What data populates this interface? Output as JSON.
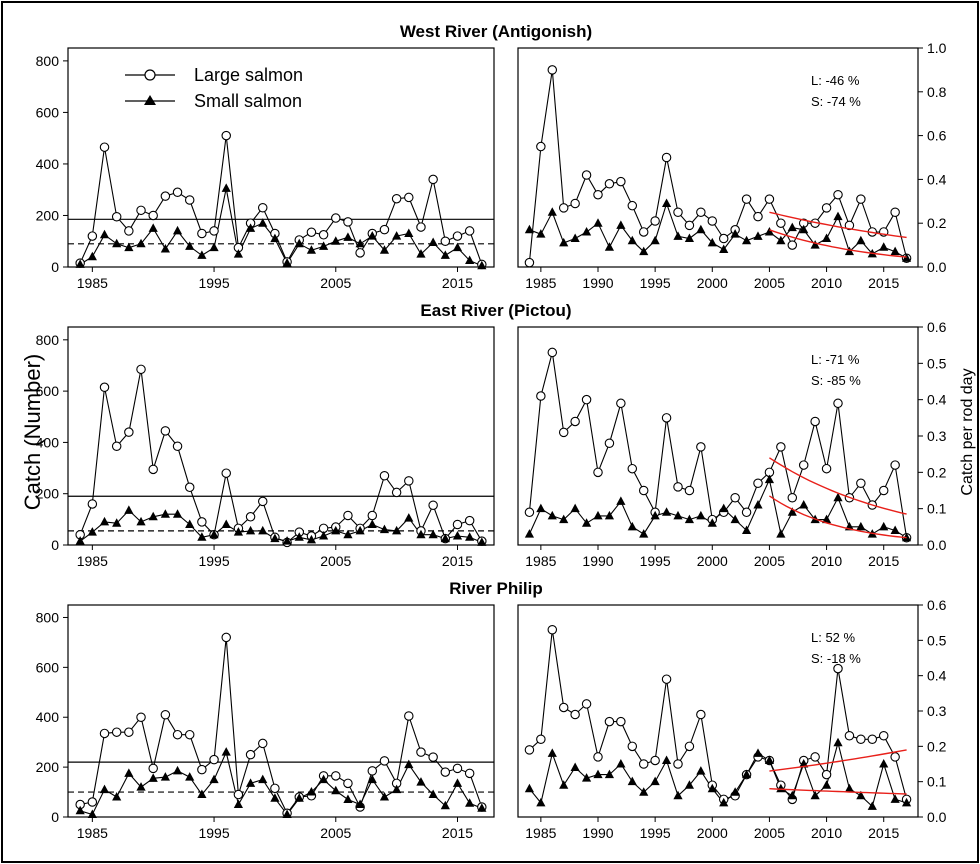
{
  "figure": {
    "ylabel_left": "Catch (Number)",
    "ylabel_right": "Catch per rod day",
    "legend": [
      {
        "label": "Large salmon",
        "marker": "open-circle"
      },
      {
        "label": "Small salmon",
        "marker": "filled-triangle"
      }
    ],
    "colors": {
      "trend": "#e8201a",
      "line": "#000000"
    }
  },
  "chart_data": [
    {
      "type": "line",
      "river": "West River (Antigonish)",
      "measure": "Catch (Number)",
      "xlim": [
        1983,
        2018
      ],
      "ylim": [
        0,
        850
      ],
      "xticks": [
        1985,
        1995,
        2005,
        2015
      ],
      "yticks": [
        0,
        200,
        400,
        600,
        800
      ],
      "x": [
        1984,
        1985,
        1986,
        1987,
        1988,
        1989,
        1990,
        1991,
        1992,
        1993,
        1994,
        1995,
        1996,
        1997,
        1998,
        1999,
        2000,
        2001,
        2002,
        2003,
        2004,
        2005,
        2006,
        2007,
        2008,
        2009,
        2010,
        2011,
        2012,
        2013,
        2014,
        2015,
        2016,
        2017
      ],
      "series": [
        {
          "name": "Large salmon",
          "marker": "open-circle",
          "values": [
            15,
            120,
            465,
            195,
            140,
            220,
            200,
            275,
            290,
            260,
            130,
            140,
            510,
            75,
            170,
            230,
            130,
            20,
            105,
            135,
            125,
            190,
            175,
            55,
            130,
            145,
            265,
            270,
            155,
            340,
            100,
            120,
            140,
            10
          ]
        },
        {
          "name": "Small salmon",
          "marker": "filled-triangle",
          "values": [
            10,
            40,
            125,
            90,
            75,
            90,
            150,
            70,
            140,
            80,
            45,
            75,
            305,
            50,
            150,
            170,
            110,
            15,
            90,
            65,
            80,
            100,
            115,
            90,
            120,
            65,
            120,
            130,
            50,
            95,
            45,
            75,
            25,
            5
          ]
        }
      ],
      "reference_lines": [
        {
          "style": "solid",
          "y": 185
        },
        {
          "style": "dashed",
          "y": 90
        }
      ]
    },
    {
      "type": "line",
      "river": "West River (Antigonish)",
      "measure": "Catch per rod day",
      "xlim": [
        1983,
        2018
      ],
      "ylim": [
        0,
        1.0
      ],
      "xticks": [
        1985,
        1990,
        1995,
        2000,
        2005,
        2010,
        2015
      ],
      "yticks": [
        0.0,
        0.2,
        0.4,
        0.6,
        0.8,
        1.0
      ],
      "annotations": [
        "L: -46 %",
        "S: -74 %"
      ],
      "x": [
        1984,
        1985,
        1986,
        1987,
        1988,
        1989,
        1990,
        1991,
        1992,
        1993,
        1994,
        1995,
        1996,
        1997,
        1998,
        1999,
        2000,
        2001,
        2002,
        2003,
        2004,
        2005,
        2006,
        2007,
        2008,
        2009,
        2010,
        2011,
        2012,
        2013,
        2014,
        2015,
        2016,
        2017
      ],
      "series": [
        {
          "name": "Large salmon",
          "marker": "open-circle",
          "values": [
            0.02,
            0.55,
            0.9,
            0.27,
            0.29,
            0.42,
            0.33,
            0.38,
            0.39,
            0.28,
            0.16,
            0.21,
            0.5,
            0.25,
            0.19,
            0.25,
            0.21,
            0.13,
            0.17,
            0.31,
            0.23,
            0.31,
            0.2,
            0.1,
            0.2,
            0.2,
            0.27,
            0.33,
            0.19,
            0.31,
            0.16,
            0.16,
            0.25,
            0.04
          ]
        },
        {
          "name": "Small salmon",
          "marker": "filled-triangle",
          "values": [
            0.17,
            0.15,
            0.25,
            0.11,
            0.13,
            0.16,
            0.2,
            0.09,
            0.19,
            0.12,
            0.07,
            0.12,
            0.29,
            0.14,
            0.13,
            0.17,
            0.11,
            0.08,
            0.15,
            0.12,
            0.14,
            0.16,
            0.12,
            0.18,
            0.17,
            0.1,
            0.13,
            0.23,
            0.07,
            0.12,
            0.06,
            0.09,
            0.07,
            0.04
          ]
        }
      ],
      "trend_lines": [
        {
          "series": "Large salmon",
          "x": [
            2005,
            2017
          ],
          "y": [
            0.25,
            0.135
          ]
        },
        {
          "series": "Small salmon",
          "x": [
            2005,
            2017
          ],
          "y": [
            0.17,
            0.045
          ]
        }
      ]
    },
    {
      "type": "line",
      "river": "East River (Pictou)",
      "measure": "Catch (Number)",
      "xlim": [
        1983,
        2018
      ],
      "ylim": [
        0,
        850
      ],
      "xticks": [
        1985,
        1995,
        2005,
        2015
      ],
      "yticks": [
        0,
        200,
        400,
        600,
        800
      ],
      "x": [
        1984,
        1985,
        1986,
        1987,
        1988,
        1989,
        1990,
        1991,
        1992,
        1993,
        1994,
        1995,
        1996,
        1997,
        1998,
        1999,
        2000,
        2001,
        2002,
        2003,
        2004,
        2005,
        2006,
        2007,
        2008,
        2009,
        2010,
        2011,
        2012,
        2013,
        2014,
        2015,
        2016,
        2017
      ],
      "series": [
        {
          "name": "Large salmon",
          "marker": "open-circle",
          "values": [
            40,
            160,
            615,
            385,
            440,
            685,
            295,
            445,
            385,
            225,
            90,
            40,
            280,
            65,
            110,
            170,
            30,
            10,
            50,
            35,
            65,
            70,
            115,
            65,
            115,
            270,
            205,
            250,
            55,
            155,
            25,
            80,
            95,
            15
          ]
        },
        {
          "name": "Small salmon",
          "marker": "filled-triangle",
          "values": [
            15,
            50,
            90,
            85,
            135,
            90,
            110,
            120,
            120,
            80,
            30,
            40,
            80,
            50,
            55,
            55,
            25,
            15,
            30,
            20,
            35,
            55,
            40,
            55,
            80,
            60,
            55,
            105,
            40,
            40,
            25,
            35,
            30,
            10
          ]
        }
      ],
      "reference_lines": [
        {
          "style": "solid",
          "y": 190
        },
        {
          "style": "dashed",
          "y": 55
        }
      ]
    },
    {
      "type": "line",
      "river": "East River (Pictou)",
      "measure": "Catch per rod day",
      "xlim": [
        1983,
        2018
      ],
      "ylim": [
        0,
        0.6
      ],
      "xticks": [
        1985,
        1990,
        1995,
        2000,
        2005,
        2010,
        2015
      ],
      "yticks": [
        0.0,
        0.1,
        0.2,
        0.3,
        0.4,
        0.5,
        0.6
      ],
      "annotations": [
        "L: -71 %",
        "S: -85 %"
      ],
      "x": [
        1984,
        1985,
        1986,
        1987,
        1988,
        1989,
        1990,
        1991,
        1992,
        1993,
        1994,
        1995,
        1996,
        1997,
        1998,
        1999,
        2000,
        2001,
        2002,
        2003,
        2004,
        2005,
        2006,
        2007,
        2008,
        2009,
        2010,
        2011,
        2012,
        2013,
        2014,
        2015,
        2016,
        2017
      ],
      "series": [
        {
          "name": "Large salmon",
          "marker": "open-circle",
          "values": [
            0.09,
            0.41,
            0.53,
            0.31,
            0.34,
            0.4,
            0.2,
            0.28,
            0.39,
            0.21,
            0.15,
            0.09,
            0.35,
            0.16,
            0.15,
            0.27,
            0.07,
            0.09,
            0.13,
            0.09,
            0.17,
            0.2,
            0.27,
            0.13,
            0.22,
            0.34,
            0.21,
            0.39,
            0.13,
            0.17,
            0.11,
            0.15,
            0.22,
            0.02
          ]
        },
        {
          "name": "Small salmon",
          "marker": "filled-triangle",
          "values": [
            0.03,
            0.1,
            0.08,
            0.07,
            0.1,
            0.06,
            0.08,
            0.08,
            0.12,
            0.05,
            0.03,
            0.08,
            0.09,
            0.08,
            0.07,
            0.08,
            0.06,
            0.1,
            0.07,
            0.04,
            0.11,
            0.18,
            0.03,
            0.09,
            0.11,
            0.07,
            0.07,
            0.13,
            0.05,
            0.05,
            0.03,
            0.05,
            0.04,
            0.02
          ]
        }
      ],
      "trend_lines": [
        {
          "series": "Large salmon",
          "x": [
            2005,
            2017
          ],
          "y": [
            0.24,
            0.085
          ]
        },
        {
          "series": "Small salmon",
          "x": [
            2005,
            2017
          ],
          "y": [
            0.135,
            0.02
          ]
        }
      ]
    },
    {
      "type": "line",
      "river": "River Philip",
      "measure": "Catch (Number)",
      "xlim": [
        1983,
        2018
      ],
      "ylim": [
        0,
        850
      ],
      "xticks": [
        1985,
        1995,
        2005,
        2015
      ],
      "yticks": [
        0,
        200,
        400,
        600,
        800
      ],
      "x": [
        1984,
        1985,
        1986,
        1987,
        1988,
        1989,
        1990,
        1991,
        1992,
        1993,
        1994,
        1995,
        1996,
        1997,
        1998,
        1999,
        2000,
        2001,
        2002,
        2003,
        2004,
        2005,
        2006,
        2007,
        2008,
        2009,
        2010,
        2011,
        2012,
        2013,
        2014,
        2015,
        2016,
        2017
      ],
      "series": [
        {
          "name": "Large salmon",
          "marker": "open-circle",
          "values": [
            50,
            60,
            335,
            340,
            340,
            400,
            195,
            410,
            330,
            330,
            190,
            230,
            720,
            90,
            250,
            295,
            115,
            15,
            80,
            85,
            165,
            165,
            135,
            40,
            185,
            225,
            135,
            405,
            260,
            240,
            180,
            195,
            175,
            40
          ]
        },
        {
          "name": "Small salmon",
          "marker": "filled-triangle",
          "values": [
            25,
            10,
            110,
            80,
            175,
            120,
            155,
            160,
            185,
            160,
            90,
            150,
            260,
            50,
            135,
            150,
            75,
            10,
            75,
            100,
            150,
            105,
            70,
            50,
            150,
            80,
            110,
            210,
            140,
            90,
            45,
            135,
            55,
            35
          ]
        }
      ],
      "reference_lines": [
        {
          "style": "solid",
          "y": 220
        },
        {
          "style": "dashed",
          "y": 100
        }
      ]
    },
    {
      "type": "line",
      "river": "River Philip",
      "measure": "Catch per rod day",
      "xlim": [
        1983,
        2018
      ],
      "ylim": [
        0,
        0.6
      ],
      "xticks": [
        1985,
        1990,
        1995,
        2000,
        2005,
        2010,
        2015
      ],
      "yticks": [
        0.0,
        0.1,
        0.2,
        0.3,
        0.4,
        0.5,
        0.6
      ],
      "annotations": [
        "L: 52 %",
        "S: -18 %"
      ],
      "x": [
        1984,
        1985,
        1986,
        1987,
        1988,
        1989,
        1990,
        1991,
        1992,
        1993,
        1994,
        1995,
        1996,
        1997,
        1998,
        1999,
        2000,
        2001,
        2002,
        2003,
        2004,
        2005,
        2006,
        2007,
        2008,
        2009,
        2010,
        2011,
        2012,
        2013,
        2014,
        2015,
        2016,
        2017
      ],
      "series": [
        {
          "name": "Large salmon",
          "marker": "open-circle",
          "values": [
            0.19,
            0.22,
            0.53,
            0.31,
            0.29,
            0.32,
            0.17,
            0.27,
            0.27,
            0.2,
            0.15,
            0.16,
            0.39,
            0.15,
            0.2,
            0.29,
            0.09,
            0.05,
            0.06,
            0.12,
            0.17,
            0.16,
            0.09,
            0.05,
            0.16,
            0.17,
            0.12,
            0.42,
            0.23,
            0.22,
            0.22,
            0.23,
            0.17,
            0.05
          ]
        },
        {
          "name": "Small salmon",
          "marker": "filled-triangle",
          "values": [
            0.08,
            0.04,
            0.18,
            0.09,
            0.14,
            0.11,
            0.12,
            0.12,
            0.15,
            0.1,
            0.07,
            0.1,
            0.16,
            0.06,
            0.09,
            0.13,
            0.08,
            0.04,
            0.07,
            0.12,
            0.18,
            0.16,
            0.08,
            0.06,
            0.15,
            0.06,
            0.09,
            0.21,
            0.08,
            0.06,
            0.03,
            0.15,
            0.05,
            0.04
          ]
        }
      ],
      "trend_lines": [
        {
          "series": "Large salmon",
          "x": [
            2005,
            2017
          ],
          "y": [
            0.13,
            0.19
          ]
        },
        {
          "series": "Small salmon",
          "x": [
            2005,
            2017
          ],
          "y": [
            0.08,
            0.065
          ]
        }
      ]
    }
  ]
}
